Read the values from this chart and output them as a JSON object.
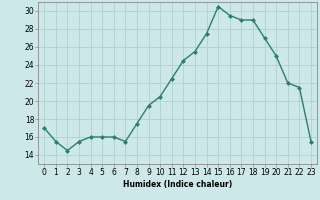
{
  "x": [
    0,
    1,
    2,
    3,
    4,
    5,
    6,
    7,
    8,
    9,
    10,
    11,
    12,
    13,
    14,
    15,
    16,
    17,
    18,
    19,
    20,
    21,
    22,
    23
  ],
  "y": [
    17.0,
    15.5,
    14.5,
    15.5,
    16.0,
    16.0,
    16.0,
    15.5,
    17.5,
    19.5,
    20.5,
    22.5,
    24.5,
    25.5,
    27.5,
    30.5,
    29.5,
    29.0,
    29.0,
    27.0,
    25.0,
    22.0,
    21.5,
    15.5
  ],
  "line_color": "#2e7d6e",
  "marker": "D",
  "marker_size": 2.0,
  "bg_color": "#cce8e8",
  "grid_color": "#b0d0d0",
  "xlabel": "Humidex (Indice chaleur)",
  "xlim": [
    -0.5,
    23.5
  ],
  "ylim": [
    13,
    31
  ],
  "yticks": [
    14,
    16,
    18,
    20,
    22,
    24,
    26,
    28,
    30
  ],
  "xticks": [
    0,
    1,
    2,
    3,
    4,
    5,
    6,
    7,
    8,
    9,
    10,
    11,
    12,
    13,
    14,
    15,
    16,
    17,
    18,
    19,
    20,
    21,
    22,
    23
  ],
  "xlabel_fontsize": 5.5,
  "tick_fontsize": 5.5,
  "line_width": 1.0,
  "spine_color": "#888888"
}
